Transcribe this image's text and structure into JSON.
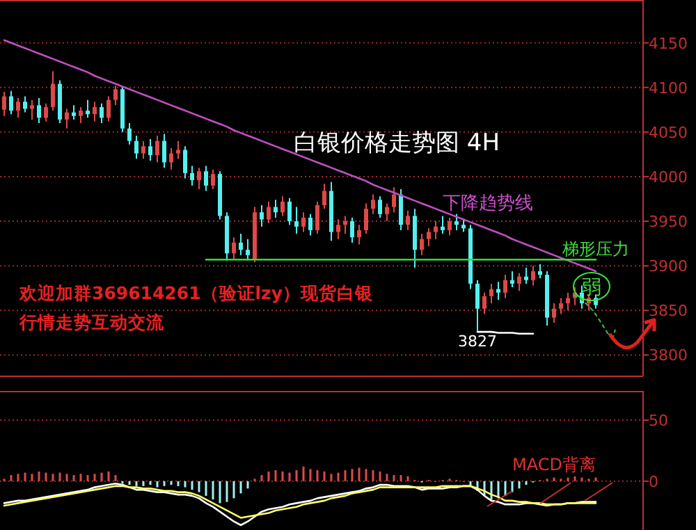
{
  "chart_data": [
    {
      "type": "candlestick",
      "title": "白银价格走势图 4H",
      "tick_labels": "y",
      "grid": "y",
      "categories": [
        null,
        null,
        null,
        null,
        null,
        null,
        null,
        null,
        null,
        null,
        null,
        null,
        null,
        null,
        null,
        null,
        null,
        null,
        null,
        null,
        null,
        null,
        null,
        null,
        null,
        null,
        null,
        null,
        null,
        null,
        null,
        null,
        null,
        null,
        null,
        null,
        null,
        null,
        null,
        null,
        null,
        null,
        null,
        null,
        null,
        null,
        null,
        null,
        null,
        null,
        null,
        null,
        null,
        null,
        null,
        null,
        null,
        null,
        null,
        null,
        null,
        null,
        null,
        null,
        null,
        null,
        null,
        null,
        null,
        null,
        null,
        null,
        null,
        null,
        null,
        null,
        null,
        null,
        null,
        null,
        null,
        null,
        null,
        null,
        null,
        null
      ],
      "ohlc": [
        [
          4075,
          4095,
          4068,
          4090
        ],
        [
          4090,
          4096,
          4070,
          4074
        ],
        [
          4074,
          4088,
          4066,
          4084
        ],
        [
          4084,
          4090,
          4072,
          4076
        ],
        [
          4076,
          4086,
          4064,
          4080
        ],
        [
          4080,
          4088,
          4060,
          4066
        ],
        [
          4066,
          4082,
          4062,
          4078
        ],
        [
          4078,
          4118,
          4074,
          4104
        ],
        [
          4104,
          4108,
          4060,
          4064
        ],
        [
          4064,
          4076,
          4054,
          4072
        ],
        [
          4072,
          4080,
          4064,
          4068
        ],
        [
          4068,
          4078,
          4060,
          4074
        ],
        [
          4074,
          4086,
          4066,
          4070
        ],
        [
          4070,
          4084,
          4062,
          4078
        ],
        [
          4078,
          4082,
          4060,
          4066
        ],
        [
          4066,
          4090,
          4062,
          4086
        ],
        [
          4086,
          4102,
          4080,
          4098
        ],
        [
          4098,
          4100,
          4050,
          4054
        ],
        [
          4054,
          4060,
          4036,
          4040
        ],
        [
          4040,
          4046,
          4020,
          4026
        ],
        [
          4026,
          4040,
          4020,
          4034
        ],
        [
          4034,
          4042,
          4018,
          4024
        ],
        [
          4024,
          4046,
          4016,
          4040
        ],
        [
          4040,
          4048,
          4010,
          4016
        ],
        [
          4016,
          4032,
          4008,
          4026
        ],
        [
          4026,
          4040,
          4020,
          4030
        ],
        [
          4030,
          4034,
          3998,
          4004
        ],
        [
          4004,
          4012,
          3990,
          3996
        ],
        [
          3996,
          4010,
          3986,
          4006
        ],
        [
          4006,
          4012,
          3984,
          3990
        ],
        [
          3990,
          4008,
          3986,
          4003
        ],
        [
          4003,
          4006,
          3952,
          3956
        ],
        [
          3956,
          3960,
          3906,
          3914
        ],
        [
          3914,
          3932,
          3908,
          3926
        ],
        [
          3926,
          3936,
          3912,
          3918
        ],
        [
          3918,
          3930,
          3906,
          3912
        ],
        [
          3908,
          3966,
          3904,
          3960
        ],
        [
          3960,
          3968,
          3944,
          3952
        ],
        [
          3952,
          3972,
          3948,
          3966
        ],
        [
          3966,
          3974,
          3954,
          3960
        ],
        [
          3960,
          3978,
          3956,
          3972
        ],
        [
          3972,
          3976,
          3946,
          3950
        ],
        [
          3950,
          3966,
          3936,
          3944
        ],
        [
          3944,
          3960,
          3938,
          3954
        ],
        [
          3954,
          3958,
          3934,
          3940
        ],
        [
          3940,
          3972,
          3936,
          3968
        ],
        [
          3968,
          3992,
          3964,
          3984
        ],
        [
          3984,
          3994,
          3928,
          3938
        ],
        [
          3938,
          3952,
          3930,
          3946
        ],
        [
          3946,
          3956,
          3936,
          3950
        ],
        [
          3950,
          3954,
          3926,
          3932
        ],
        [
          3932,
          3946,
          3924,
          3940
        ],
        [
          3940,
          3970,
          3936,
          3964
        ],
        [
          3964,
          3980,
          3958,
          3974
        ],
        [
          3974,
          3978,
          3954,
          3958
        ],
        [
          3958,
          3970,
          3950,
          3966
        ],
        [
          3966,
          3988,
          3960,
          3980
        ],
        [
          3980,
          3986,
          3940,
          3946
        ],
        [
          3946,
          3962,
          3940,
          3956
        ],
        [
          3956,
          3964,
          3898,
          3918
        ],
        [
          3918,
          3936,
          3912,
          3930
        ],
        [
          3930,
          3942,
          3922,
          3938
        ],
        [
          3938,
          3950,
          3930,
          3944
        ],
        [
          3944,
          3956,
          3936,
          3940
        ],
        [
          3940,
          3954,
          3934,
          3950
        ],
        [
          3950,
          3958,
          3940,
          3946
        ],
        [
          3946,
          3952,
          3938,
          3942
        ],
        [
          3942,
          3946,
          3874,
          3880
        ],
        [
          3880,
          3884,
          3827,
          3852
        ],
        [
          3852,
          3870,
          3846,
          3866
        ],
        [
          3866,
          3880,
          3858,
          3874
        ],
        [
          3874,
          3882,
          3862,
          3870
        ],
        [
          3870,
          3890,
          3864,
          3884
        ],
        [
          3884,
          3894,
          3876,
          3880
        ],
        [
          3880,
          3892,
          3872,
          3888
        ],
        [
          3888,
          3898,
          3880,
          3884
        ],
        [
          3884,
          3900,
          3878,
          3894
        ],
        [
          3894,
          3902,
          3886,
          3890
        ],
        [
          3890,
          3894,
          3833,
          3842
        ],
        [
          3842,
          3858,
          3836,
          3852
        ],
        [
          3852,
          3864,
          3846,
          3858
        ],
        [
          3858,
          3870,
          3850,
          3864
        ],
        [
          3864,
          3876,
          3856,
          3870
        ],
        [
          3870,
          3878,
          3852,
          3858
        ],
        [
          3858,
          3868,
          3850,
          3864
        ],
        [
          3864,
          3868,
          3852,
          3856
        ]
      ],
      "ylim": [
        3777,
        4198
      ],
      "yticks": [
        3800,
        3850,
        3900,
        3950,
        4000,
        4050,
        4100,
        4150
      ],
      "series": [
        {
          "type": "line",
          "color": "#c050c0",
          "values": [
            4153,
            4150,
            4147,
            4144,
            4141,
            4138,
            4135,
            4132,
            4129,
            4126,
            4123,
            4120,
            4117,
            4113,
            4110,
            4107,
            4104,
            4101,
            4098,
            4095,
            4092,
            4089,
            4086,
            4083,
            4080,
            4077,
            4074,
            4071,
            4068,
            4065,
            4062,
            4059,
            4056,
            4052,
            4049,
            4046,
            4043,
            4040,
            4037,
            4034,
            4031,
            4028,
            4025,
            4022,
            4019,
            4016,
            4013,
            4010,
            4007,
            4004,
            4001,
            3998,
            3995,
            3991,
            3988,
            3985,
            3982,
            3979,
            3976,
            3973,
            3970,
            3967,
            3964,
            3961,
            3958,
            3955,
            3952,
            3949,
            3946,
            3943,
            3940,
            3937,
            3934,
            3930,
            3927,
            3924,
            3921,
            3918,
            3915,
            3912,
            3909,
            3906,
            3903,
            3900,
            3897,
            3894
          ]
        },
        {
          "type": "line",
          "color": "#30e030",
          "values": [
            null,
            null,
            null,
            null,
            null,
            null,
            null,
            null,
            null,
            null,
            null,
            null,
            null,
            null,
            null,
            null,
            null,
            null,
            null,
            null,
            null,
            null,
            null,
            null,
            null,
            null,
            null,
            null,
            null,
            3907,
            3907,
            3907,
            3907,
            3907,
            3907,
            3907,
            3907,
            3907,
            3907,
            3907,
            3907,
            3907,
            3907,
            3907,
            3907,
            3907,
            3907,
            3907,
            3907,
            3907,
            3907,
            3907,
            3907,
            3907,
            3907,
            3907,
            3907,
            3907,
            3907,
            3907,
            3907,
            3907,
            3907,
            3907,
            3907,
            3907,
            3907,
            3907,
            3907,
            3907,
            3907,
            3907,
            3907,
            3907,
            3907,
            3907,
            3907,
            3907,
            3907,
            3907,
            3907,
            3907,
            3907,
            3907,
            3907,
            3907
          ]
        },
        {
          "type": "line",
          "color": "#ffffff",
          "values": [
            null,
            null,
            null,
            null,
            null,
            null,
            null,
            null,
            null,
            null,
            null,
            null,
            null,
            null,
            null,
            null,
            null,
            null,
            null,
            null,
            null,
            null,
            null,
            null,
            null,
            null,
            null,
            null,
            null,
            null,
            null,
            null,
            null,
            null,
            null,
            null,
            null,
            null,
            null,
            null,
            null,
            null,
            null,
            null,
            null,
            null,
            null,
            null,
            null,
            null,
            null,
            null,
            null,
            null,
            null,
            null,
            null,
            null,
            null,
            null,
            null,
            null,
            null,
            null,
            null,
            null,
            null,
            null,
            3826,
            3826,
            3826,
            3825,
            3825,
            3825,
            3824,
            3824,
            3824,
            null,
            null,
            null,
            null,
            null,
            null,
            null,
            null,
            null
          ]
        }
      ],
      "annotations": [
        "下降趋势线",
        "梯形压力",
        "3827",
        "弱",
        "欢迎加群369614261（验证lzy）现货白银",
        "行情走势互动交流"
      ]
    },
    {
      "type": "bar",
      "tick_labels": "y",
      "grid": "y",
      "categories": [
        null,
        null,
        null,
        null,
        null,
        null,
        null,
        null,
        null,
        null,
        null,
        null,
        null,
        null,
        null,
        null,
        null,
        null,
        null,
        null,
        null,
        null,
        null,
        null,
        null,
        null,
        null,
        null,
        null,
        null,
        null,
        null,
        null,
        null,
        null,
        null,
        null,
        null,
        null,
        null,
        null,
        null,
        null,
        null,
        null,
        null,
        null,
        null,
        null,
        null,
        null,
        null,
        null,
        null,
        null,
        null,
        null,
        null,
        null,
        null,
        null,
        null,
        null,
        null,
        null,
        null,
        null,
        null,
        null,
        null,
        null,
        null,
        null,
        null,
        null,
        null,
        null,
        null,
        null,
        null,
        null,
        null,
        null,
        null,
        null,
        null
      ],
      "ylim": [
        -40,
        74
      ],
      "yticks": [
        50,
        0
      ],
      "series": [
        {
          "type": "bar",
          "colors": [
            "#e04848",
            "#e04848",
            "#e04848",
            "#e04848",
            "#e04848",
            "#e04848",
            "#e04848",
            "#e04848",
            "#e04848",
            "#e04848",
            "#e04848",
            "#e04848",
            "#e04848",
            "#e04848",
            "#e04848",
            "#e04848",
            "#e04848",
            "#a0f0f0",
            "#a0f0f0",
            "#a0f0f0",
            "#a0f0f0",
            "#a0f0f0",
            "#a0f0f0",
            "#a0f0f0",
            "#a0f0f0",
            "#a0f0f0",
            "#a0f0f0",
            "#a0f0f0",
            "#a0f0f0",
            "#a0f0f0",
            "#a0f0f0",
            "#a0f0f0",
            "#a0f0f0",
            "#a0f0f0",
            "#a0f0f0",
            "#a0f0f0",
            "#e04848",
            "#e04848",
            "#e04848",
            "#e04848",
            "#e04848",
            "#e04848",
            "#e04848",
            "#e04848",
            "#e04848",
            "#e04848",
            "#e04848",
            "#e04848",
            "#e04848",
            "#e04848",
            "#e04848",
            "#e04848",
            "#e04848",
            "#e04848",
            "#e04848",
            "#e04848",
            "#e04848",
            "#e04848",
            "#e04848",
            "#e04848",
            "#a0f0f0",
            "#e04848",
            "#e04848",
            "#e04848",
            "#e04848",
            "#e04848",
            "#e04848",
            "#a0f0f0",
            "#a0f0f0",
            "#a0f0f0",
            "#a0f0f0",
            "#a0f0f0",
            "#a0f0f0",
            "#a0f0f0",
            "#a0f0f0",
            "#a0f0f0",
            "#a0f0f0",
            "#e04848",
            "#e04848",
            "#e04848",
            "#e04848",
            "#e04848",
            "#e04848",
            "#e04848",
            "#e04848",
            "#e04848"
          ],
          "values": [
            2,
            5,
            6,
            7,
            6,
            8,
            7,
            6,
            7,
            6,
            5,
            6,
            5,
            6,
            7,
            8,
            5,
            -2,
            -3,
            -4,
            -4,
            -3,
            -5,
            -4,
            -3,
            -4,
            -5,
            -7,
            -9,
            -12,
            -15,
            -18,
            -17,
            -14,
            -10,
            -6,
            2,
            5,
            8,
            9,
            8,
            7,
            9,
            12,
            10,
            9,
            8,
            6,
            7,
            9,
            10,
            11,
            10,
            9,
            8,
            6,
            5,
            5,
            4,
            1,
            -1,
            1,
            0,
            1,
            2,
            1,
            0,
            -4,
            -8,
            -12,
            -15,
            -14,
            -12,
            -9,
            -6,
            -3,
            -1,
            1,
            2,
            3,
            2,
            3,
            4,
            3,
            2,
            3
          ]
        },
        {
          "type": "line",
          "color": "#ffffff",
          "values": [
            -18,
            -17,
            -16,
            -16,
            -15,
            -14,
            -13,
            -12,
            -11,
            -10,
            -9,
            -8,
            -7,
            -5,
            -4,
            -3,
            -2,
            -3,
            -5,
            -7,
            -7,
            -8,
            -9,
            -9,
            -10,
            -11,
            -11,
            -12,
            -14,
            -18,
            -21,
            -25,
            -29,
            -33,
            -36,
            -33,
            -29,
            -25,
            -23,
            -22,
            -21,
            -19,
            -18,
            -17,
            -16,
            -14,
            -13,
            -12,
            -11,
            -10,
            -9,
            -8,
            -6,
            -5,
            -3,
            -3,
            -4,
            -4,
            -4,
            -5,
            -7,
            -6,
            -6,
            -6,
            -5,
            -5,
            -4,
            -4,
            -7,
            -12,
            -16,
            -17,
            -19,
            -19,
            -19,
            -18,
            -18,
            -19,
            -20,
            -19,
            -19,
            -18,
            -18,
            -17,
            -17,
            -17
          ]
        },
        {
          "type": "line",
          "color": "#ffff66",
          "values": [
            -20,
            -19,
            -18,
            -17,
            -16,
            -15,
            -14,
            -13,
            -12,
            -11,
            -10,
            -9,
            -8,
            -7,
            -6,
            -5,
            -4,
            -4,
            -5,
            -5,
            -6,
            -6,
            -7,
            -8,
            -8,
            -9,
            -9,
            -10,
            -12,
            -15,
            -18,
            -21,
            -24,
            -27,
            -30,
            -29,
            -28,
            -27,
            -26,
            -24,
            -23,
            -22,
            -21,
            -19,
            -18,
            -17,
            -16,
            -14,
            -13,
            -12,
            -10,
            -9,
            -8,
            -7,
            -5,
            -5,
            -5,
            -5,
            -5,
            -5,
            -5,
            -5,
            -5,
            -4,
            -4,
            -4,
            -4,
            -4,
            -6,
            -8,
            -11,
            -13,
            -16,
            -16,
            -17,
            -17,
            -18,
            -18,
            -19,
            -19,
            -19,
            -18,
            -18,
            -18,
            -18,
            -18
          ]
        }
      ],
      "annotations": [
        "MACD背离"
      ]
    }
  ]
}
